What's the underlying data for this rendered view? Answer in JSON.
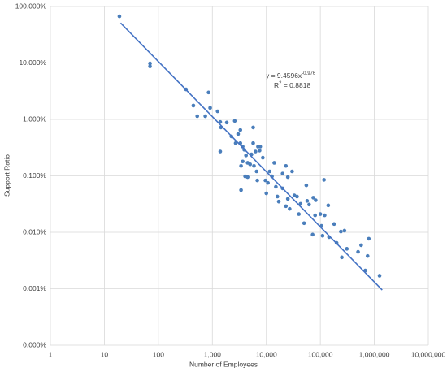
{
  "chart_data": {
    "type": "scatter",
    "x_label": "Number of Employees",
    "y_label": "Support Ratio",
    "xscale": "log",
    "yscale": "log",
    "grid": true,
    "color": "#4a7ebb",
    "xlim": [
      1,
      10000000
    ],
    "xticks": [
      1,
      10,
      100,
      {
        "value": 1000,
        "label": "1,000"
      },
      {
        "value": 10000,
        "label": "10,000"
      },
      {
        "value": 100000,
        "label": "100,000"
      },
      {
        "value": 1000000,
        "label": "1,000,000"
      },
      {
        "value": 10000000,
        "label": "10,000,000"
      }
    ],
    "ylim": [
      0.0001,
      100
    ],
    "yticks": [
      {
        "value": 0.0001,
        "label": "0.000%"
      },
      {
        "value": 0.001,
        "label": "0.001%"
      },
      {
        "value": 0.01,
        "label": "0.010%"
      },
      {
        "value": 0.1,
        "label": "0.100%"
      },
      {
        "value": 1,
        "label": "1.000%"
      },
      {
        "value": 10,
        "label": "10.000%"
      },
      {
        "value": 100,
        "label": "100.000%"
      }
    ],
    "x": [
      19,
      70,
      70,
      325,
      445,
      525,
      850,
      910,
      740,
      1250,
      1400,
      1440,
      1400,
      1850,
      2250,
      2600,
      2700,
      3000,
      3300,
      3300,
      3650,
      3900,
      4200,
      4500,
      4500,
      5300,
      5700,
      5700,
      6300,
      7000,
      7500,
      3400,
      3400,
      3650,
      4050,
      5000,
      5900,
      6600,
      6800,
      7700,
      8600,
      9600,
      10000,
      10700,
      11500,
      12700,
      14000,
      15000,
      16000,
      17000,
      20000,
      20000,
      23000,
      23000,
      25000,
      27000,
      25000,
      30000,
      33000,
      37000,
      43000,
      57000,
      40000,
      55000,
      62000,
      74000,
      82000,
      80000,
      100000,
      110000,
      105000,
      140000,
      145000,
      180000,
      200000,
      240000,
      250000,
      280000,
      310000,
      500000,
      570000,
      750000,
      680000,
      790000,
      1250000,
      117000,
      120000,
      50000,
      72000
    ],
    "values": [
      67,
      9.8,
      8.7,
      3.4,
      1.76,
      1.14,
      3.0,
      1.6,
      1.14,
      1.39,
      0.9,
      0.72,
      0.27,
      0.88,
      0.5,
      0.94,
      0.38,
      0.55,
      0.65,
      0.38,
      0.33,
      0.29,
      0.23,
      0.17,
      0.095,
      0.24,
      0.72,
      0.38,
      0.27,
      0.33,
      0.28,
      0.056,
      0.15,
      0.18,
      0.098,
      0.16,
      0.15,
      0.12,
      0.083,
      0.33,
      0.21,
      0.083,
      0.049,
      0.075,
      0.12,
      0.098,
      0.17,
      0.064,
      0.043,
      0.035,
      0.06,
      0.11,
      0.15,
      0.029,
      0.039,
      0.026,
      0.095,
      0.12,
      0.045,
      0.043,
      0.032,
      0.036,
      0.021,
      0.068,
      0.031,
      0.041,
      0.037,
      0.02,
      0.021,
      0.0087,
      0.013,
      0.03,
      0.0082,
      0.014,
      0.0065,
      0.0103,
      0.0036,
      0.0107,
      0.0051,
      0.0045,
      0.0059,
      0.0038,
      0.0021,
      0.0077,
      0.0017,
      0.085,
      0.02,
      0.0145,
      0.0091
    ],
    "trendline": {
      "x": [
        20,
        1400000
      ],
      "values": [
        51,
        0.00095
      ],
      "color": "#4472c4"
    },
    "annotation": {
      "equation": "y = 9.4596x",
      "exponent": "-0.976",
      "r2_symbol": "R",
      "r2_power": "2",
      "r2_value": " = 0.8818"
    }
  }
}
